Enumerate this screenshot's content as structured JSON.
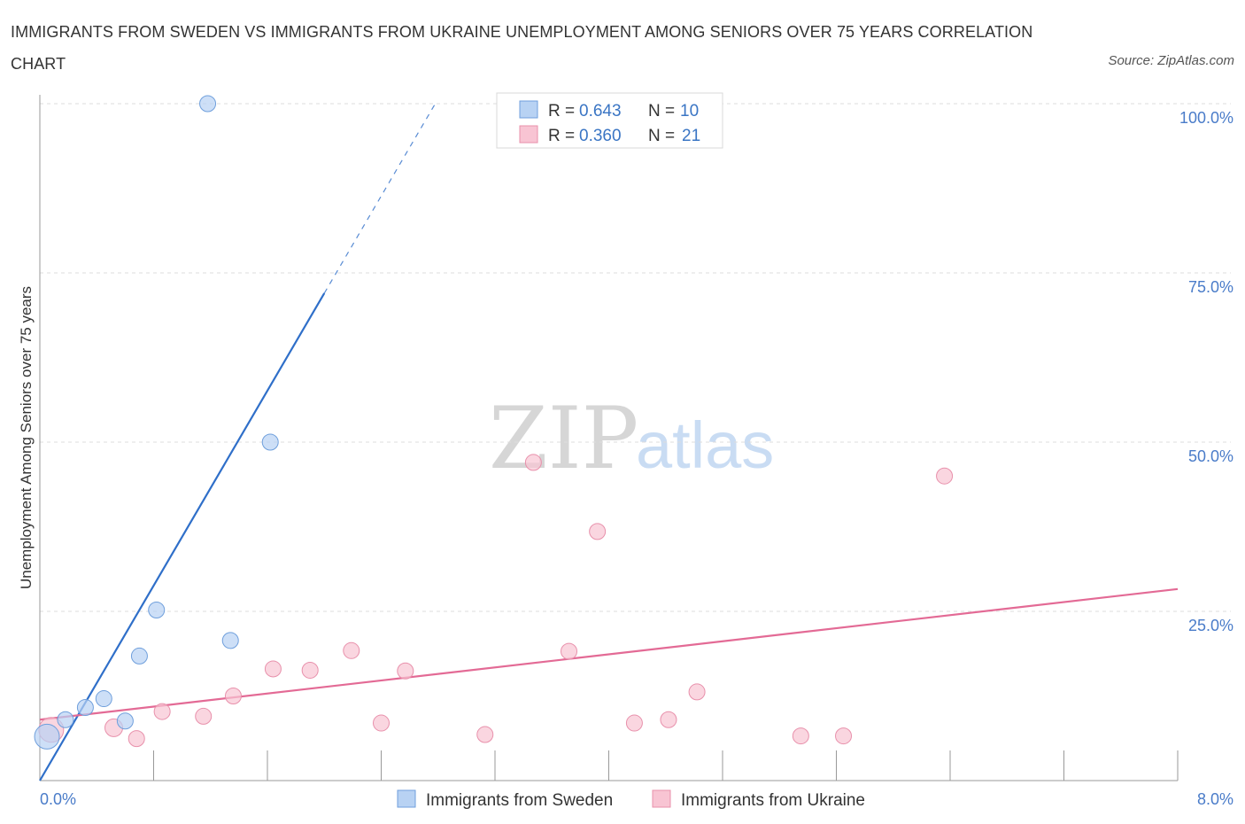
{
  "title": "IMMIGRANTS FROM SWEDEN VS IMMIGRANTS FROM UKRAINE UNEMPLOYMENT AMONG SENIORS OVER 75 YEARS CORRELATION CHART",
  "source": "Source: ZipAtlas.com",
  "watermark": {
    "zip": "ZIP",
    "atlas": "atlas"
  },
  "colors": {
    "sweden_fill": "#b8d2f3",
    "sweden_stroke": "#6f9fdc",
    "sweden_line": "#2f6fc9",
    "ukraine_fill": "#f8c4d3",
    "ukraine_stroke": "#e890ab",
    "ukraine_line": "#e36a95",
    "grid": "#dddddd",
    "axis": "#999999"
  },
  "chart_data": {
    "type": "scatter",
    "title": "IMMIGRANTS FROM SWEDEN VS IMMIGRANTS FROM UKRAINE UNEMPLOYMENT AMONG SENIORS OVER 75 YEARS CORRELATION CHART",
    "xlabel": "",
    "ylabel": "Unemployment Among Seniors over 75 years",
    "xlim": [
      0,
      8
    ],
    "ylim": [
      0,
      100
    ],
    "x_tick_labels": {
      "min": "0.0%",
      "max": "8.0%"
    },
    "y_ticks": [
      {
        "value": 100,
        "label": "100.0%"
      },
      {
        "value": 75,
        "label": "75.0%"
      },
      {
        "value": 50,
        "label": "50.0%"
      },
      {
        "value": 25,
        "label": "25.0%"
      }
    ],
    "grid": true,
    "legend_position": "top-center",
    "series": [
      {
        "name": "Immigrants from Sweden",
        "R_label": "R =",
        "R_value": "0.643",
        "N_label": "N =",
        "N_value": "10",
        "points": [
          {
            "x": 0.05,
            "y": 6.5,
            "size": 14
          },
          {
            "x": 0.18,
            "y": 9.0,
            "size": 9
          },
          {
            "x": 0.32,
            "y": 10.8,
            "size": 9
          },
          {
            "x": 0.45,
            "y": 12.1,
            "size": 9
          },
          {
            "x": 0.6,
            "y": 8.8,
            "size": 9
          },
          {
            "x": 0.7,
            "y": 18.4,
            "size": 9
          },
          {
            "x": 0.82,
            "y": 25.2,
            "size": 9
          },
          {
            "x": 1.34,
            "y": 20.7,
            "size": 9
          },
          {
            "x": 1.62,
            "y": 50.0,
            "size": 9
          },
          {
            "x": 1.18,
            "y": 100.0,
            "size": 9
          }
        ],
        "trendline": {
          "x0": 0.0,
          "y0": 0.0,
          "x1": 2.0,
          "y1": 72.0,
          "dashed_to_x": 2.78,
          "dashed_to_y": 100.0
        }
      },
      {
        "name": "Immigrants from Ukraine",
        "R_label": "R =",
        "R_value": "0.360",
        "N_label": "N =",
        "N_value": "21",
        "points": [
          {
            "x": 0.08,
            "y": 7.5,
            "size": 14
          },
          {
            "x": 0.52,
            "y": 7.8,
            "size": 10
          },
          {
            "x": 0.68,
            "y": 6.2,
            "size": 9
          },
          {
            "x": 0.86,
            "y": 10.2,
            "size": 9
          },
          {
            "x": 1.15,
            "y": 9.5,
            "size": 9
          },
          {
            "x": 1.36,
            "y": 12.5,
            "size": 9
          },
          {
            "x": 1.64,
            "y": 16.5,
            "size": 9
          },
          {
            "x": 1.9,
            "y": 16.3,
            "size": 9
          },
          {
            "x": 2.19,
            "y": 19.2,
            "size": 9
          },
          {
            "x": 2.4,
            "y": 8.5,
            "size": 9
          },
          {
            "x": 2.57,
            "y": 16.2,
            "size": 9
          },
          {
            "x": 3.13,
            "y": 6.8,
            "size": 9
          },
          {
            "x": 3.47,
            "y": 47.0,
            "size": 9
          },
          {
            "x": 3.72,
            "y": 19.1,
            "size": 9
          },
          {
            "x": 3.92,
            "y": 36.8,
            "size": 9
          },
          {
            "x": 4.18,
            "y": 8.5,
            "size": 9
          },
          {
            "x": 4.42,
            "y": 9.0,
            "size": 9
          },
          {
            "x": 4.62,
            "y": 13.1,
            "size": 9
          },
          {
            "x": 5.35,
            "y": 6.6,
            "size": 9
          },
          {
            "x": 5.65,
            "y": 6.6,
            "size": 9
          },
          {
            "x": 6.36,
            "y": 45.0,
            "size": 9
          }
        ],
        "trendline": {
          "x0": 0.0,
          "y0": 9.0,
          "x1": 8.0,
          "y1": 28.3
        }
      }
    ]
  }
}
